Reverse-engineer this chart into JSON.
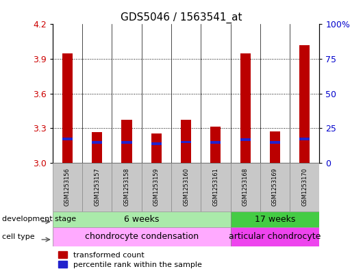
{
  "title": "GDS5046 / 1563541_at",
  "samples": [
    "GSM1253156",
    "GSM1253157",
    "GSM1253158",
    "GSM1253159",
    "GSM1253160",
    "GSM1253161",
    "GSM1253168",
    "GSM1253169",
    "GSM1253170"
  ],
  "red_values": [
    3.95,
    3.265,
    3.375,
    3.255,
    3.375,
    3.31,
    3.95,
    3.27,
    4.02
  ],
  "blue_values": [
    3.205,
    3.175,
    3.175,
    3.165,
    3.18,
    3.175,
    3.2,
    3.175,
    3.205
  ],
  "blue_heights": [
    0.022,
    0.022,
    0.022,
    0.022,
    0.022,
    0.022,
    0.022,
    0.022,
    0.022
  ],
  "ymin": 3.0,
  "ymax": 4.2,
  "yticks_left": [
    3.0,
    3.3,
    3.6,
    3.9,
    4.2
  ],
  "yticks_right_vals": [
    0,
    25,
    50,
    75,
    100
  ],
  "yticks_right_labels": [
    "0",
    "25",
    "50",
    "75",
    "100%"
  ],
  "dev_stage_groups": [
    {
      "label": "6 weeks",
      "start": 0,
      "end": 6,
      "color": "#AAEAAA"
    },
    {
      "label": "17 weeks",
      "start": 6,
      "end": 9,
      "color": "#44CC44"
    }
  ],
  "cell_type_groups": [
    {
      "label": "chondrocyte condensation",
      "start": 0,
      "end": 6,
      "color": "#FFAAFF"
    },
    {
      "label": "articular chondrocyte",
      "start": 6,
      "end": 9,
      "color": "#EE44EE"
    }
  ],
  "bar_color": "#BB0000",
  "blue_color": "#2222CC",
  "bar_width": 0.35,
  "blue_bar_width": 0.35,
  "axis_color_left": "#CC0000",
  "axis_color_right": "#0000CC",
  "dev_stage_label": "development stage",
  "cell_type_label": "cell type",
  "legend_red": "transformed count",
  "legend_blue": "percentile rank within the sample",
  "sample_box_color": "#C8C8C8"
}
